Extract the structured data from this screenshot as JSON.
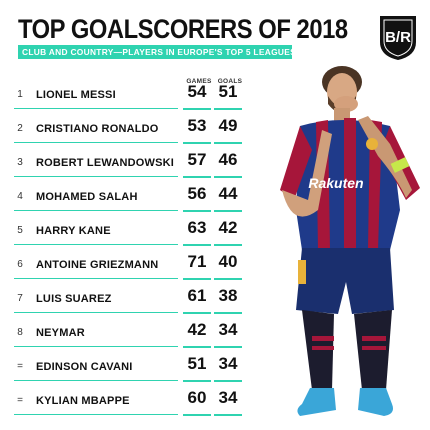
{
  "header": {
    "title": "TOP GOALSCORERS OF 2018",
    "subtitle": "CLUB AND COUNTRY—PLAYERS IN EUROPE'S TOP 5 LEAGUES"
  },
  "columns": {
    "games": "GAMES",
    "goals": "GOALS"
  },
  "colors": {
    "accent": "#2fd3b0",
    "barca_blue": "#1f3a8a",
    "barca_red": "#a6163a"
  },
  "chart_data": {
    "type": "table",
    "title": "TOP GOALSCORERS OF 2018",
    "subtitle": "CLUB AND COUNTRY—PLAYERS IN EUROPE'S TOP 5 LEAGUES",
    "columns": [
      "GAMES",
      "GOALS"
    ],
    "rows": [
      {
        "rank": "1",
        "name": "LIONEL MESSI",
        "games": 54,
        "goals": 51
      },
      {
        "rank": "2",
        "name": "CRISTIANO RONALDO",
        "games": 53,
        "goals": 49
      },
      {
        "rank": "3",
        "name": "ROBERT LEWANDOWSKI",
        "games": 57,
        "goals": 46
      },
      {
        "rank": "4",
        "name": "MOHAMED SALAH",
        "games": 56,
        "goals": 44
      },
      {
        "rank": "5",
        "name": "HARRY KANE",
        "games": 63,
        "goals": 42
      },
      {
        "rank": "6",
        "name": "ANTOINE GRIEZMANN",
        "games": 71,
        "goals": 40
      },
      {
        "rank": "7",
        "name": "LUIS SUAREZ",
        "games": 61,
        "goals": 38
      },
      {
        "rank": "8",
        "name": "NEYMAR",
        "games": 42,
        "goals": 34
      },
      {
        "rank": "=",
        "name": "EDINSON CAVANI",
        "games": 51,
        "goals": 34
      },
      {
        "rank": "=",
        "name": "KYLIAN MBAPPE",
        "games": 60,
        "goals": 34
      }
    ]
  }
}
